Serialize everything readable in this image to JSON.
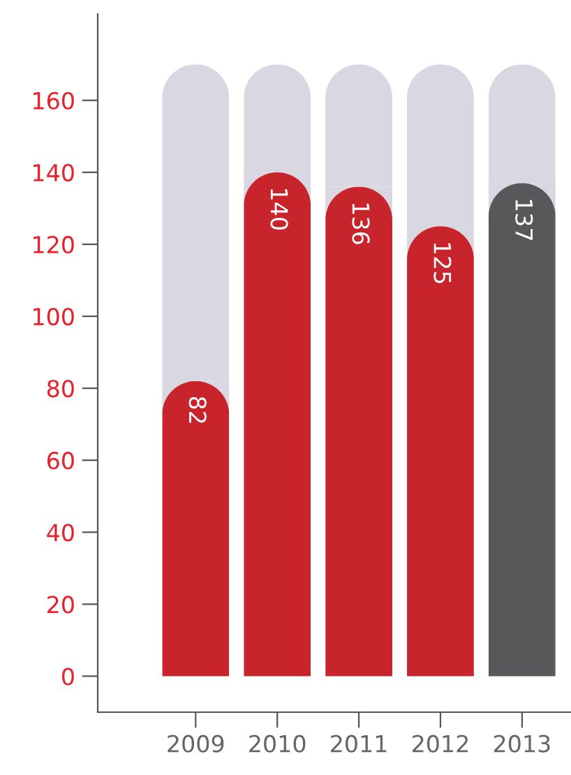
{
  "chart_data": {
    "type": "bar",
    "stacked": true,
    "categories": [
      "2009",
      "2010",
      "2011",
      "2012",
      "2013"
    ],
    "series": [
      {
        "colors": [
          "#c8242b",
          "#c8242b",
          "#c8242b",
          "#c8242b",
          "#58585a"
        ],
        "values": [
          82,
          140,
          136,
          125,
          137
        ],
        "value_labels": [
          "82",
          "140",
          "136",
          "125",
          "137"
        ]
      },
      {
        "color": "#d9d7e1",
        "values": [
          88,
          30,
          34,
          45,
          33
        ]
      }
    ],
    "ylim": [
      -10,
      184
    ],
    "yticks": [
      0,
      20,
      40,
      60,
      80,
      100,
      120,
      140,
      160
    ],
    "grid": false,
    "legend": false
  }
}
